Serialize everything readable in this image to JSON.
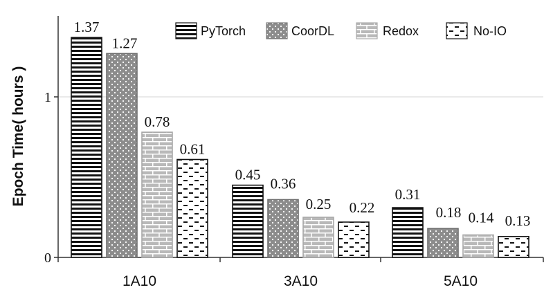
{
  "chart_data": {
    "type": "bar",
    "title": "",
    "xlabel": "",
    "ylabel": "Epoch Time( hours )",
    "ylim": [
      0,
      1.5
    ],
    "yticks": [
      0,
      1
    ],
    "grid": true,
    "legend_position": "top",
    "categories": [
      "1A10",
      "3A10",
      "5A10"
    ],
    "series": [
      {
        "name": "PyTorch",
        "values": [
          1.37,
          0.45,
          0.31
        ],
        "labels": [
          "1.37",
          "0.45",
          "0.31"
        ]
      },
      {
        "name": "CoorDL",
        "values": [
          1.27,
          0.36,
          0.18
        ],
        "labels": [
          "1.27",
          "0.36",
          "0.18"
        ]
      },
      {
        "name": "Redox",
        "values": [
          0.78,
          0.25,
          0.14
        ],
        "labels": [
          "0.78",
          "0.25",
          "0.14"
        ]
      },
      {
        "name": "No-IO",
        "values": [
          0.61,
          0.22,
          0.13
        ],
        "labels": [
          "0.61",
          "0.22",
          "0.13"
        ]
      }
    ]
  }
}
